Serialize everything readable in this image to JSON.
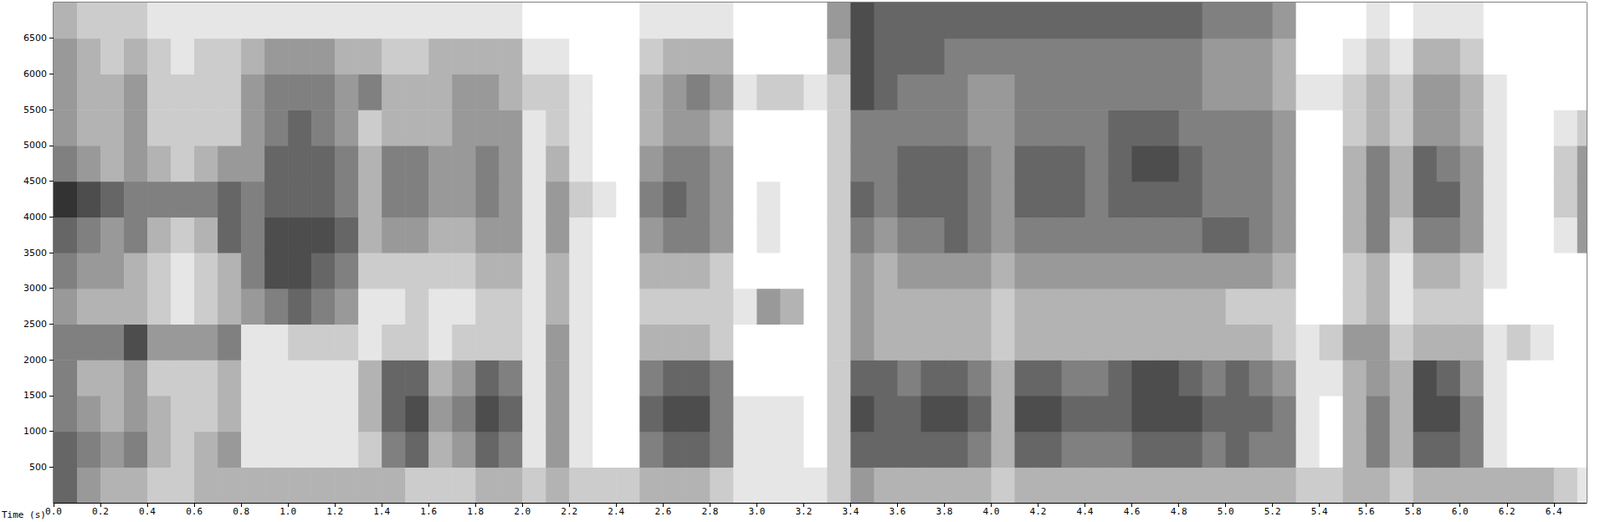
{
  "chart_data": {
    "type": "spectrogram",
    "x_label": "Time (s)",
    "xlim": [
      0,
      6.54
    ],
    "xticks": [
      {
        "value": 0,
        "label": "0.0"
      },
      {
        "value": 0.2,
        "label": "0.2"
      },
      {
        "value": 0.4,
        "label": "0.4"
      },
      {
        "value": 0.6,
        "label": "0.6"
      },
      {
        "value": 0.8,
        "label": "0.8"
      },
      {
        "value": 1.0,
        "label": "1.0"
      },
      {
        "value": 1.2,
        "label": "1.2"
      },
      {
        "value": 1.4,
        "label": "1.4"
      },
      {
        "value": 1.6,
        "label": "1.6"
      },
      {
        "value": 1.8,
        "label": "1.8"
      },
      {
        "value": 2.0,
        "label": "2.0"
      },
      {
        "value": 2.2,
        "label": "2.2"
      },
      {
        "value": 2.4,
        "label": "2.4"
      },
      {
        "value": 2.6,
        "label": "2.6"
      },
      {
        "value": 2.8,
        "label": "2.8"
      },
      {
        "value": 3.0,
        "label": "3.0"
      },
      {
        "value": 3.2,
        "label": "3.2"
      },
      {
        "value": 3.4,
        "label": "3.4"
      },
      {
        "value": 3.6,
        "label": "3.6"
      },
      {
        "value": 3.8,
        "label": "3.8"
      },
      {
        "value": 4.0,
        "label": "4.0"
      },
      {
        "value": 4.2,
        "label": "4.2"
      },
      {
        "value": 4.4,
        "label": "4.4"
      },
      {
        "value": 4.6,
        "label": "4.6"
      },
      {
        "value": 4.8,
        "label": "4.8"
      },
      {
        "value": 5.0,
        "label": "5.0"
      },
      {
        "value": 5.2,
        "label": "5.2"
      },
      {
        "value": 5.4,
        "label": "5.4"
      },
      {
        "value": 5.6,
        "label": "5.6"
      },
      {
        "value": 5.8,
        "label": "5.8"
      },
      {
        "value": 6.0,
        "label": "6.0"
      },
      {
        "value": 6.2,
        "label": "6.2"
      },
      {
        "value": 6.4,
        "label": "6.4"
      }
    ],
    "ylim": [
      0,
      7000
    ],
    "yticks": [
      500,
      1000,
      1500,
      2000,
      2500,
      3000,
      3500,
      4000,
      4500,
      5000,
      5500,
      6000,
      6500
    ],
    "grid": false,
    "color": "#1a1a1a",
    "zlim": [
      0,
      9
    ],
    "x_bins": [
      0,
      0.1,
      0.2,
      0.3,
      0.4,
      0.5,
      0.6,
      0.7,
      0.8,
      0.9,
      1.0,
      1.1,
      1.2,
      1.3,
      1.4,
      1.5,
      1.6,
      1.7,
      1.8,
      1.9,
      2.0,
      2.1,
      2.2,
      2.3,
      2.4,
      2.5,
      2.6,
      2.7,
      2.8,
      2.9,
      3.0,
      3.1,
      3.2,
      3.3,
      3.4,
      3.5,
      3.6,
      3.7,
      3.8,
      3.9,
      4.0,
      4.1,
      4.2,
      4.3,
      4.4,
      4.5,
      4.6,
      4.7,
      4.8,
      4.9,
      5.0,
      5.1,
      5.2,
      5.3,
      5.4,
      5.5,
      5.6,
      5.7,
      5.8,
      5.9,
      6.0,
      6.1,
      6.2,
      6.3,
      6.4,
      6.5,
      6.54
    ],
    "y_bins": [
      0,
      500,
      1000,
      1500,
      2000,
      2500,
      3000,
      3500,
      4000,
      4500,
      5000,
      5500,
      6000,
      6500,
      7000
    ],
    "intensity": [
      [
        6,
        6,
        5,
        5,
        5,
        4,
        5,
        6,
        8,
        5,
        4,
        4,
        4,
        3
      ],
      [
        4,
        5,
        4,
        3,
        5,
        3,
        4,
        5,
        7,
        4,
        3,
        3,
        3,
        2
      ],
      [
        3,
        4,
        3,
        3,
        5,
        3,
        4,
        4,
        6,
        3,
        3,
        3,
        2,
        2
      ],
      [
        3,
        5,
        4,
        4,
        7,
        3,
        3,
        5,
        5,
        4,
        4,
        4,
        3,
        2
      ],
      [
        2,
        3,
        3,
        2,
        4,
        2,
        2,
        3,
        5,
        3,
        2,
        2,
        2,
        1
      ],
      [
        2,
        2,
        2,
        2,
        4,
        1,
        1,
        2,
        5,
        2,
        2,
        2,
        1,
        1
      ],
      [
        3,
        3,
        2,
        2,
        4,
        2,
        2,
        3,
        5,
        3,
        2,
        2,
        2,
        1
      ],
      [
        3,
        4,
        3,
        3,
        5,
        3,
        3,
        6,
        6,
        4,
        2,
        2,
        2,
        1
      ],
      [
        3,
        1,
        1,
        1,
        1,
        4,
        5,
        5,
        5,
        4,
        4,
        4,
        3,
        1
      ],
      [
        3,
        1,
        1,
        1,
        1,
        5,
        7,
        7,
        6,
        6,
        5,
        5,
        4,
        1
      ],
      [
        3,
        1,
        1,
        1,
        2,
        6,
        7,
        7,
        6,
        6,
        6,
        5,
        4,
        1
      ],
      [
        3,
        1,
        1,
        1,
        2,
        5,
        6,
        7,
        6,
        6,
        5,
        5,
        4,
        1
      ],
      [
        3,
        1,
        1,
        1,
        2,
        4,
        5,
        6,
        5,
        5,
        4,
        4,
        3,
        1
      ],
      [
        3,
        2,
        3,
        3,
        1,
        1,
        2,
        3,
        3,
        3,
        2,
        5,
        3,
        1
      ],
      [
        3,
        5,
        6,
        6,
        2,
        1,
        2,
        4,
        5,
        5,
        3,
        3,
        2,
        1
      ],
      [
        2,
        6,
        7,
        6,
        2,
        2,
        2,
        4,
        5,
        5,
        3,
        3,
        2,
        1
      ],
      [
        2,
        3,
        4,
        3,
        1,
        1,
        2,
        3,
        4,
        4,
        3,
        3,
        3,
        1
      ],
      [
        2,
        4,
        5,
        4,
        2,
        1,
        2,
        3,
        4,
        4,
        4,
        4,
        3,
        1
      ],
      [
        3,
        6,
        7,
        6,
        2,
        2,
        3,
        4,
        5,
        5,
        4,
        4,
        3,
        1
      ],
      [
        3,
        5,
        6,
        5,
        2,
        2,
        3,
        4,
        4,
        4,
        4,
        3,
        3,
        1
      ],
      [
        2,
        1,
        1,
        1,
        1,
        1,
        1,
        1,
        1,
        1,
        1,
        2,
        1,
        0
      ],
      [
        3,
        4,
        4,
        4,
        4,
        3,
        3,
        4,
        4,
        3,
        2,
        2,
        1,
        0
      ],
      [
        2,
        1,
        1,
        1,
        1,
        1,
        1,
        1,
        2,
        1,
        1,
        1,
        0,
        0
      ],
      [
        2,
        0,
        0,
        0,
        0,
        0,
        0,
        0,
        1,
        0,
        0,
        0,
        0,
        0
      ],
      [
        2,
        0,
        0,
        0,
        0,
        0,
        0,
        0,
        0,
        0,
        0,
        0,
        0,
        0
      ],
      [
        3,
        5,
        6,
        5,
        3,
        2,
        3,
        4,
        5,
        4,
        3,
        3,
        2,
        1
      ],
      [
        3,
        6,
        7,
        6,
        3,
        2,
        3,
        5,
        6,
        5,
        4,
        4,
        3,
        1
      ],
      [
        3,
        6,
        7,
        6,
        3,
        2,
        3,
        5,
        5,
        5,
        4,
        5,
        3,
        1
      ],
      [
        2,
        5,
        5,
        5,
        2,
        2,
        2,
        4,
        4,
        4,
        3,
        4,
        3,
        1
      ],
      [
        1,
        1,
        1,
        0,
        0,
        1,
        0,
        0,
        0,
        0,
        0,
        1,
        0,
        0
      ],
      [
        1,
        1,
        1,
        0,
        0,
        4,
        0,
        1,
        1,
        0,
        0,
        2,
        0,
        0
      ],
      [
        1,
        1,
        1,
        0,
        0,
        3,
        0,
        0,
        0,
        0,
        0,
        2,
        0,
        0
      ],
      [
        1,
        0,
        0,
        0,
        0,
        0,
        0,
        0,
        0,
        0,
        0,
        1,
        0,
        0
      ],
      [
        2,
        2,
        2,
        2,
        2,
        2,
        2,
        2,
        2,
        2,
        2,
        2,
        3,
        4
      ],
      [
        4,
        6,
        7,
        6,
        4,
        4,
        4,
        5,
        6,
        5,
        5,
        7,
        7,
        7
      ],
      [
        3,
        6,
        6,
        6,
        3,
        3,
        3,
        4,
        5,
        5,
        5,
        6,
        6,
        6
      ],
      [
        3,
        6,
        6,
        5,
        3,
        3,
        4,
        5,
        6,
        6,
        5,
        5,
        6,
        6
      ],
      [
        3,
        6,
        7,
        6,
        3,
        3,
        4,
        5,
        6,
        6,
        5,
        5,
        6,
        6
      ],
      [
        3,
        6,
        7,
        6,
        3,
        3,
        4,
        6,
        6,
        6,
        5,
        5,
        5,
        6
      ],
      [
        3,
        5,
        6,
        5,
        3,
        3,
        4,
        5,
        5,
        5,
        4,
        4,
        5,
        6
      ],
      [
        2,
        3,
        3,
        3,
        2,
        2,
        3,
        4,
        4,
        4,
        4,
        4,
        5,
        6
      ],
      [
        3,
        6,
        7,
        6,
        3,
        3,
        4,
        5,
        6,
        6,
        5,
        5,
        5,
        6
      ],
      [
        3,
        6,
        7,
        6,
        3,
        3,
        4,
        5,
        6,
        6,
        5,
        5,
        5,
        6
      ],
      [
        3,
        5,
        6,
        5,
        3,
        3,
        4,
        5,
        6,
        6,
        5,
        5,
        5,
        6
      ],
      [
        3,
        5,
        6,
        5,
        3,
        3,
        4,
        5,
        5,
        5,
        5,
        5,
        5,
        6
      ],
      [
        3,
        5,
        6,
        6,
        3,
        3,
        4,
        5,
        6,
        6,
        6,
        5,
        5,
        6
      ],
      [
        3,
        6,
        7,
        7,
        3,
        3,
        4,
        5,
        6,
        7,
        6,
        5,
        5,
        6
      ],
      [
        3,
        6,
        7,
        7,
        3,
        3,
        4,
        5,
        6,
        7,
        6,
        5,
        5,
        6
      ],
      [
        3,
        6,
        7,
        6,
        3,
        3,
        4,
        5,
        6,
        6,
        5,
        5,
        5,
        6
      ],
      [
        3,
        5,
        6,
        5,
        3,
        3,
        4,
        6,
        5,
        5,
        5,
        4,
        4,
        5
      ],
      [
        3,
        6,
        6,
        6,
        3,
        2,
        4,
        6,
        5,
        5,
        5,
        4,
        4,
        5
      ],
      [
        3,
        5,
        6,
        5,
        3,
        2,
        4,
        5,
        5,
        5,
        5,
        4,
        4,
        5
      ],
      [
        3,
        5,
        5,
        4,
        2,
        2,
        3,
        4,
        4,
        4,
        4,
        3,
        3,
        4
      ],
      [
        2,
        1,
        1,
        1,
        1,
        0,
        0,
        0,
        0,
        0,
        0,
        1,
        0,
        0
      ],
      [
        2,
        0,
        0,
        1,
        2,
        0,
        0,
        0,
        0,
        0,
        0,
        1,
        0,
        0
      ],
      [
        3,
        3,
        3,
        3,
        4,
        2,
        2,
        3,
        3,
        3,
        2,
        2,
        1,
        0
      ],
      [
        3,
        5,
        5,
        4,
        4,
        3,
        3,
        5,
        5,
        5,
        3,
        3,
        2,
        1
      ],
      [
        2,
        3,
        3,
        3,
        2,
        1,
        1,
        2,
        3,
        3,
        2,
        2,
        1,
        0
      ],
      [
        3,
        6,
        7,
        7,
        3,
        2,
        3,
        5,
        6,
        6,
        4,
        4,
        3,
        1
      ],
      [
        3,
        6,
        7,
        6,
        3,
        2,
        3,
        5,
        6,
        5,
        4,
        4,
        3,
        1
      ],
      [
        3,
        5,
        5,
        4,
        3,
        2,
        2,
        4,
        4,
        4,
        3,
        3,
        2,
        1
      ],
      [
        3,
        1,
        1,
        1,
        1,
        0,
        1,
        1,
        1,
        1,
        1,
        1,
        0,
        0
      ],
      [
        3,
        0,
        0,
        0,
        2,
        0,
        0,
        0,
        0,
        0,
        0,
        0,
        0,
        0
      ],
      [
        3,
        0,
        0,
        0,
        1,
        0,
        0,
        0,
        0,
        0,
        0,
        0,
        0,
        0
      ],
      [
        2,
        0,
        0,
        0,
        0,
        0,
        0,
        1,
        2,
        2,
        1,
        0,
        0,
        0
      ],
      [
        1,
        0,
        0,
        0,
        0,
        0,
        0,
        4,
        4,
        4,
        2,
        0,
        0,
        0
      ]
    ]
  }
}
